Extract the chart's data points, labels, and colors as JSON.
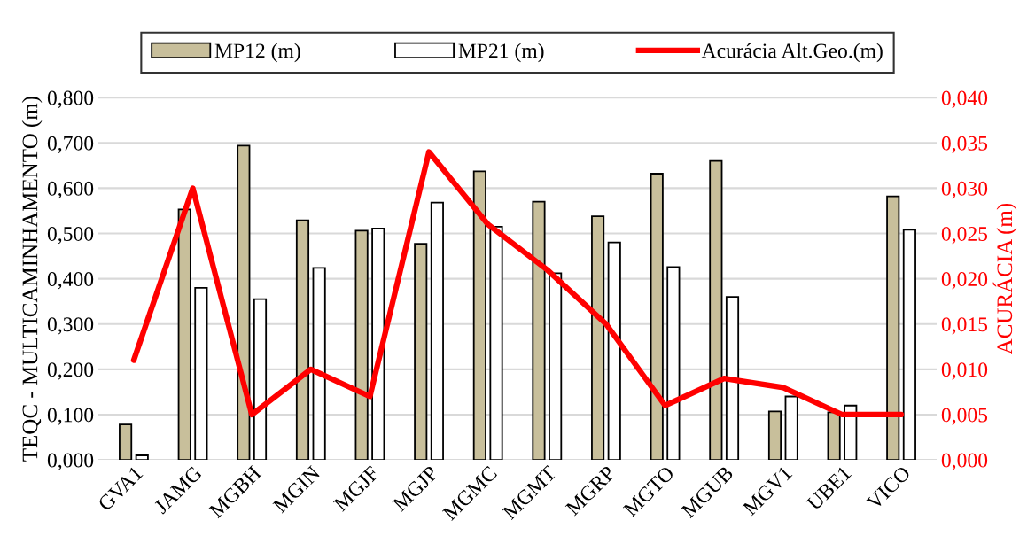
{
  "chart_data": {
    "type": "bar",
    "categories": [
      "GVA1",
      "JAMG",
      "MGBH",
      "MGIN",
      "MGJF",
      "MGJP",
      "MGMC",
      "MGMT",
      "MGRP",
      "MGTO",
      "MGUB",
      "MGV1",
      "UBE1",
      "VICO"
    ],
    "series": [
      {
        "name": "MP12 (m)",
        "color": "#c8bf9b",
        "values": [
          0.078,
          0.553,
          0.694,
          0.529,
          0.506,
          0.477,
          0.637,
          0.57,
          0.538,
          0.632,
          0.66,
          0.107,
          0.105,
          0.582
        ]
      },
      {
        "name": "MP21 (m)",
        "color": "#ffffff",
        "values": [
          0.01,
          0.38,
          0.355,
          0.424,
          0.511,
          0.568,
          0.515,
          0.412,
          0.48,
          0.426,
          0.36,
          0.14,
          0.12,
          0.508
        ]
      },
      {
        "name": "Acurácia Alt.Geo.(m)",
        "type": "line",
        "axis": "y2",
        "color": "#ff0000",
        "values": [
          0.011,
          0.03,
          0.005,
          0.01,
          0.007,
          0.034,
          0.026,
          0.021,
          0.015,
          0.006,
          0.009,
          0.008,
          0.005,
          0.005
        ]
      }
    ],
    "ylabel": "TEQC - MULTICAMINHAMENTO (m)",
    "y2label": "ACURÁCIA (m)",
    "ylim": [
      0,
      0.8
    ],
    "yticks": [
      {
        "value": 0,
        "label": "0,000"
      },
      {
        "value": 0.1,
        "label": "0,100"
      },
      {
        "value": 0.2,
        "label": "0,200"
      },
      {
        "value": 0.3,
        "label": "0,300"
      },
      {
        "value": 0.4,
        "label": "0,400"
      },
      {
        "value": 0.5,
        "label": "0,500"
      },
      {
        "value": 0.6,
        "label": "0,600"
      },
      {
        "value": 0.7,
        "label": "0,700"
      },
      {
        "value": 0.8,
        "label": "0,800"
      }
    ],
    "y2lim": [
      0,
      0.04
    ],
    "y2ticks": [
      {
        "value": 0,
        "label": "0,000"
      },
      {
        "value": 0.005,
        "label": "0,005"
      },
      {
        "value": 0.01,
        "label": "0,010"
      },
      {
        "value": 0.015,
        "label": "0,015"
      },
      {
        "value": 0.02,
        "label": "0,020"
      },
      {
        "value": 0.025,
        "label": "0,025"
      },
      {
        "value": 0.03,
        "label": "0,030"
      },
      {
        "value": 0.035,
        "label": "0,035"
      },
      {
        "value": 0.04,
        "label": "0,040"
      }
    ],
    "grid": "y",
    "legend": "top",
    "marker": "none",
    "line_style": "solid"
  }
}
